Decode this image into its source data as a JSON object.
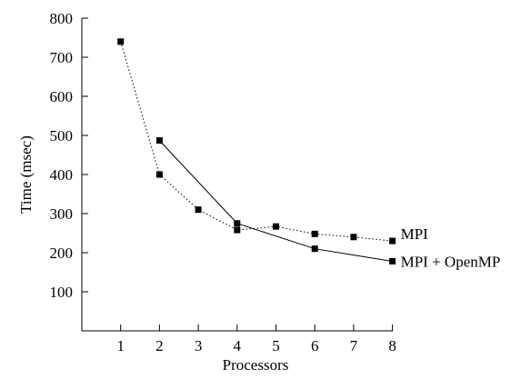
{
  "chart_data": {
    "type": "line",
    "title": "",
    "xlabel": "Processors",
    "ylabel": "Time (msec)",
    "xlim": [
      0,
      8
    ],
    "ylim": [
      0,
      800
    ],
    "xticks": [
      "1",
      "2",
      "3",
      "4",
      "5",
      "6",
      "7",
      "8"
    ],
    "yticks": [
      "100",
      "200",
      "300",
      "400",
      "500",
      "600",
      "700",
      "800"
    ],
    "grid": false,
    "legend": "inline labels at right end of each line",
    "series": [
      {
        "name": "MPI",
        "line_style": "dotted",
        "x": [
          1,
          2,
          3,
          4,
          5,
          6,
          7,
          8
        ],
        "y": [
          740,
          400,
          310,
          258,
          267,
          248,
          240,
          230
        ]
      },
      {
        "name": "MPI + OpenMP",
        "line_style": "solid",
        "x": [
          2,
          4,
          6,
          8
        ],
        "y": [
          487,
          275,
          210,
          178
        ]
      }
    ]
  }
}
